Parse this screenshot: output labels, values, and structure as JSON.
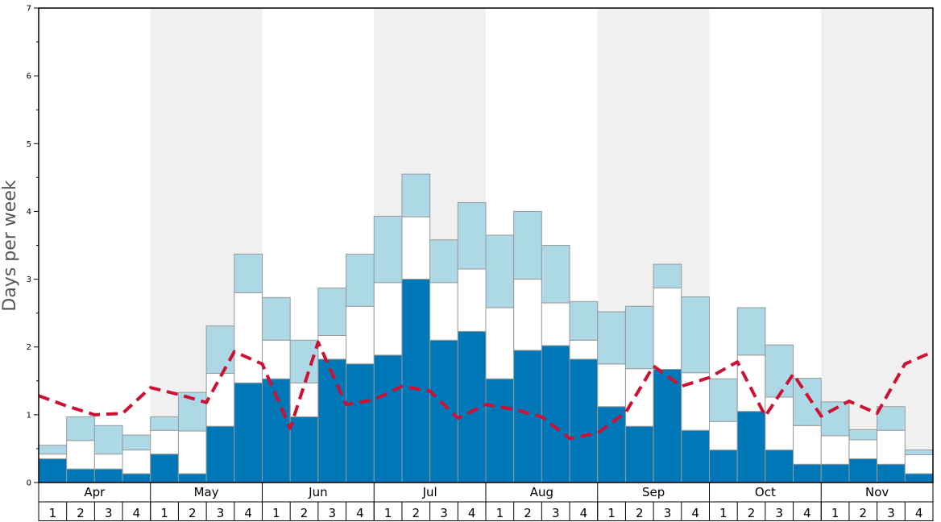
{
  "chart_data": {
    "type": "bar",
    "stacked": true,
    "ylabel": "Days per week",
    "ylim": [
      0,
      7
    ],
    "yticks": [
      "0",
      "1",
      "2",
      "3",
      "4",
      "5",
      "6",
      "7"
    ],
    "months": [
      "Apr",
      "May",
      "Jun",
      "Jul",
      "Aug",
      "Sep",
      "Oct",
      "Nov"
    ],
    "week_labels": [
      "1",
      "2",
      "3",
      "4"
    ],
    "colors": {
      "bottom": "#0077b6",
      "middle": "#ffffff",
      "top": "#add8e6",
      "line": "#cc1133",
      "band": "#f0f0f0",
      "bar_edge": "#999999"
    },
    "series": [
      {
        "values": [
          0.35,
          0.2,
          0.2,
          0.13,
          0.42,
          0.13,
          0.83,
          1.47,
          1.53,
          0.97,
          1.82,
          1.75,
          1.88,
          3.0,
          2.1,
          2.23,
          1.53,
          1.95,
          2.02,
          1.82,
          1.12,
          0.83,
          1.67,
          0.77,
          0.48,
          1.05,
          0.48,
          0.27,
          0.27,
          0.35,
          0.27,
          0.13
        ]
      },
      {
        "values": [
          0.07,
          0.42,
          0.22,
          0.35,
          0.35,
          0.63,
          0.78,
          1.33,
          0.57,
          0.5,
          0.35,
          0.85,
          1.07,
          0.92,
          0.85,
          0.92,
          1.05,
          1.05,
          0.63,
          0.28,
          0.63,
          0.85,
          1.2,
          0.85,
          0.42,
          0.83,
          0.78,
          0.57,
          0.42,
          0.28,
          0.5,
          0.28
        ]
      },
      {
        "values": [
          0.13,
          0.35,
          0.42,
          0.22,
          0.2,
          0.57,
          0.7,
          0.57,
          0.63,
          0.63,
          0.7,
          0.77,
          0.98,
          0.63,
          0.63,
          0.98,
          1.07,
          1.0,
          0.85,
          0.57,
          0.77,
          0.92,
          0.35,
          1.12,
          0.63,
          0.7,
          0.77,
          0.7,
          0.5,
          0.15,
          0.35,
          0.07
        ]
      },
      {
        "values": [
          1.28,
          1.13,
          1.0,
          1.02,
          1.4,
          1.3,
          1.18,
          1.93,
          1.75,
          0.8,
          2.07,
          1.15,
          1.22,
          1.42,
          1.35,
          0.95,
          1.15,
          1.08,
          0.97,
          0.65,
          0.73,
          1.03,
          1.72,
          1.42,
          1.55,
          1.78,
          0.98,
          1.6,
          0.98,
          1.2,
          1.02,
          1.75,
          1.93
        ]
      }
    ]
  }
}
